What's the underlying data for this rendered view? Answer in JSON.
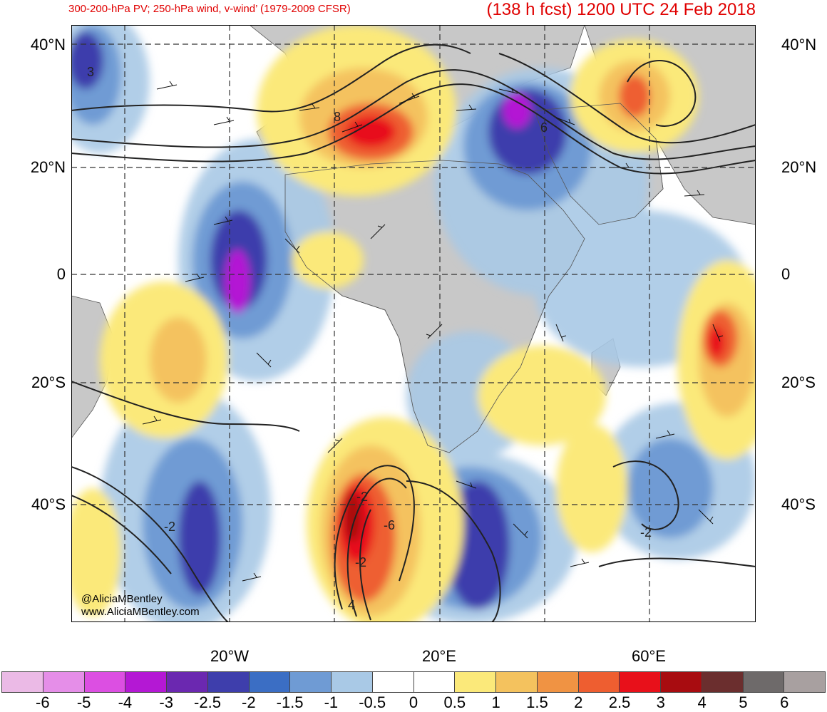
{
  "header": {
    "subtitle": "300-200-hPa PV; 250-hPa wind, v-wind’ (1979-2009 CFSR)",
    "valid_time": "(138 h fcst) 1200 UTC 24 Feb 2018"
  },
  "map": {
    "lat_labels": [
      "40°N",
      "20°N",
      "0",
      "20°S",
      "40°S"
    ],
    "lon_labels": [
      "20°W",
      "20°E",
      "60°E"
    ],
    "contour_labels": [
      "3",
      "8",
      "6",
      "-2",
      "-2",
      "-6",
      "-2",
      "4",
      "-2"
    ],
    "credits": [
      "@AliciaMBentley",
      "www.AliciaMBentley.com"
    ]
  },
  "colorbar": {
    "labels": [
      "-6",
      "-5",
      "-4",
      "-3",
      "-2.5",
      "-2",
      "-1.5",
      "-1",
      "-0.5",
      "0",
      "0.5",
      "1",
      "1.5",
      "2",
      "2.5",
      "3",
      "4",
      "5",
      "6"
    ],
    "colors": [
      "#ebbae6",
      "#e58ee8",
      "#dc4fe2",
      "#b418d4",
      "#6b28b0",
      "#3e3eac",
      "#3b6ec4",
      "#6f9bd4",
      "#a9c9e6",
      "#ffffff",
      "#ffffff",
      "#fbe97a",
      "#f4c25e",
      "#f09343",
      "#ee5e30",
      "#e8101a",
      "#a80c10",
      "#6b2e2e",
      "#6e6a6a",
      "#a8a0a0"
    ]
  },
  "colors": {
    "land": "#c8c8c8",
    "title_red": "#e00000"
  }
}
